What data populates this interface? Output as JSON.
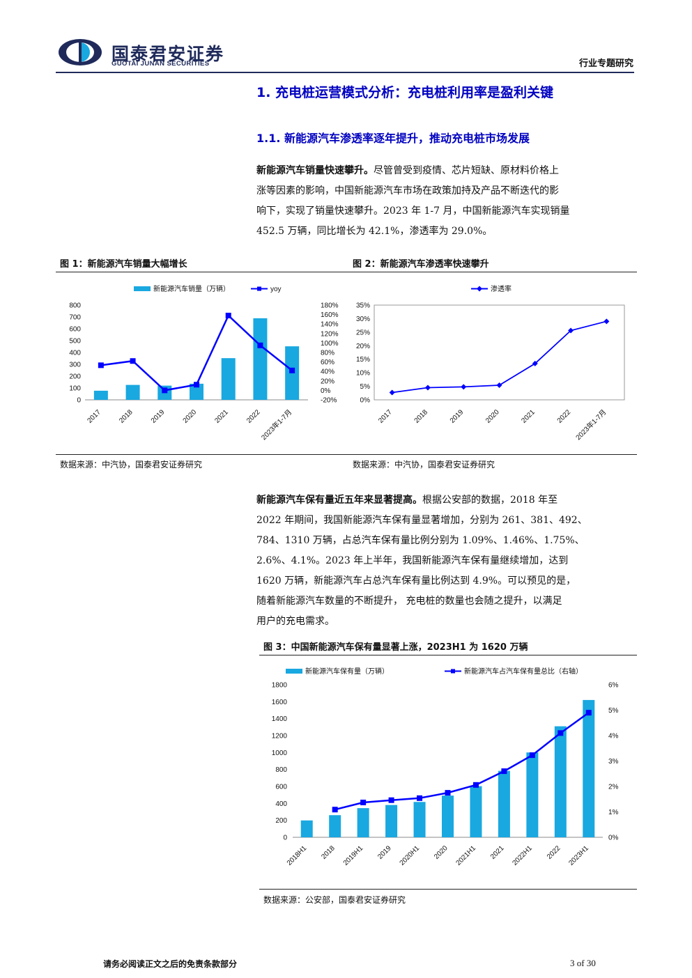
{
  "header": {
    "brand_cn": "国泰君安证券",
    "brand_en": "GUOTAI JUNAN SECURITIES",
    "report_type": "行业专题研究",
    "brand_color": "#1f2a5a"
  },
  "sections": {
    "h1": "1. 充电桩运营模式分析：充电桩利用率是盈利关键",
    "h2": "1.1. 新能源汽车渗透率逐年提升，推动充电桩市场发展"
  },
  "para1": {
    "lead": "新能源汽车销量快速攀升。",
    "lines": [
      "尽管曾受到疫情、芯片短缺、原材料价格上",
      "涨等因素的影响，中国新能源汽车市场在政策加持及产品不断迭代的影",
      "响下，实现了销量快速攀升。2023 年 1-7 月，中国新能源汽车实现销量",
      "452.5 万辆，同比增长为 42.1%，渗透率为 29.0%。"
    ]
  },
  "para2": {
    "lead": "新能源汽车保有量近五年来显著提高。",
    "lines": [
      "根据公安部的数据，2018 年至",
      "2022 年期间，我国新能源汽车保有量显著增加，分别为 261、381、492、",
      "784、1310 万辆，占总汽车保有量比例分别为 1.09%、1.46%、1.75%、",
      "2.6%、4.1%。2023 年上半年，我国新能源汽车保有量继续增加，达到",
      "1620 万辆，新能源汽车占总汽车保有量比例达到 4.9%。可以预见的是，",
      "随着新能源汽车数量的不断提升， 充电桩的数量也会随之提升，以满足",
      "用户的充电需求。"
    ]
  },
  "figures": {
    "fig1_title": "图 1：新能源汽车销量大幅增长",
    "fig1_source": "数据来源：中汽协，国泰君安证券研究",
    "fig2_title": "图 2：新能源汽车渗透率快速攀升",
    "fig2_source": "数据来源：中汽协，国泰君安证券研究",
    "fig3_title": "图 3：中国新能源汽车保有量显著上涨，2023H1 为 1620 万辆",
    "fig3_source": "数据来源：公安部，国泰君安证券研究"
  },
  "colors": {
    "bar": "#19a8e0",
    "line": "#0000ff",
    "heading": "#0000c0"
  },
  "chart_data": [
    {
      "type": "bar",
      "categories": [
        "2017",
        "2018",
        "2019",
        "2020",
        "2021",
        "2022",
        "2023年1-7月"
      ],
      "series": [
        {
          "name": "新能源汽车销量（万辆）",
          "kind": "bar",
          "axis": "left",
          "values": [
            77,
            126,
            120,
            136,
            352,
            689,
            452
          ]
        },
        {
          "name": "yoy",
          "kind": "line",
          "axis": "right",
          "values": [
            53,
            62,
            0,
            12,
            158,
            95,
            42
          ]
        }
      ],
      "y_left_ticks": [
        "0",
        "100",
        "200",
        "300",
        "400",
        "500",
        "600",
        "700",
        "800"
      ],
      "y_right_ticks": [
        "-20%",
        "0%",
        "20%",
        "40%",
        "60%",
        "80%",
        "100%",
        "120%",
        "140%",
        "160%",
        "180%"
      ],
      "ylim_left": [
        0,
        800
      ],
      "ylim_right": [
        -20,
        180
      ],
      "legend": "top"
    },
    {
      "type": "line",
      "categories": [
        "2017",
        "2018",
        "2019",
        "2020",
        "2021",
        "2022",
        "2023年1-7月"
      ],
      "series": [
        {
          "name": "渗透率",
          "values": [
            2.7,
            4.5,
            4.8,
            5.4,
            13.4,
            25.6,
            29.0
          ]
        }
      ],
      "y_ticks": [
        "0%",
        "5%",
        "10%",
        "15%",
        "20%",
        "25%",
        "30%",
        "35%"
      ],
      "ylim": [
        0,
        35
      ],
      "legend": "top"
    },
    {
      "type": "bar",
      "categories": [
        "2018H1",
        "2018",
        "2019H1",
        "2019",
        "2020H1",
        "2020",
        "2021H1",
        "2021",
        "2022H1",
        "2022",
        "2023H1"
      ],
      "series": [
        {
          "name": "新能源汽车保有量（万辆）",
          "kind": "bar",
          "axis": "left",
          "values": [
            199,
            261,
            344,
            381,
            417,
            492,
            603,
            784,
            1001,
            1310,
            1620
          ]
        },
        {
          "name": "新能源汽车占汽车保有量总比（右轴）",
          "kind": "line",
          "axis": "right",
          "values": [
            null,
            1.09,
            1.37,
            1.46,
            1.54,
            1.75,
            2.06,
            2.6,
            3.23,
            4.1,
            4.9
          ]
        }
      ],
      "y_left_ticks": [
        "0",
        "200",
        "400",
        "600",
        "800",
        "1000",
        "1200",
        "1400",
        "1600",
        "1800"
      ],
      "y_right_ticks": [
        "0%",
        "1%",
        "2%",
        "3%",
        "4%",
        "5%",
        "6%"
      ],
      "ylim_left": [
        0,
        1800
      ],
      "ylim_right": [
        0,
        6
      ],
      "legend": "top"
    }
  ],
  "footer": {
    "disclaimer": "请务必阅读正文之后的免责条款部分",
    "page": "3 of 30"
  }
}
